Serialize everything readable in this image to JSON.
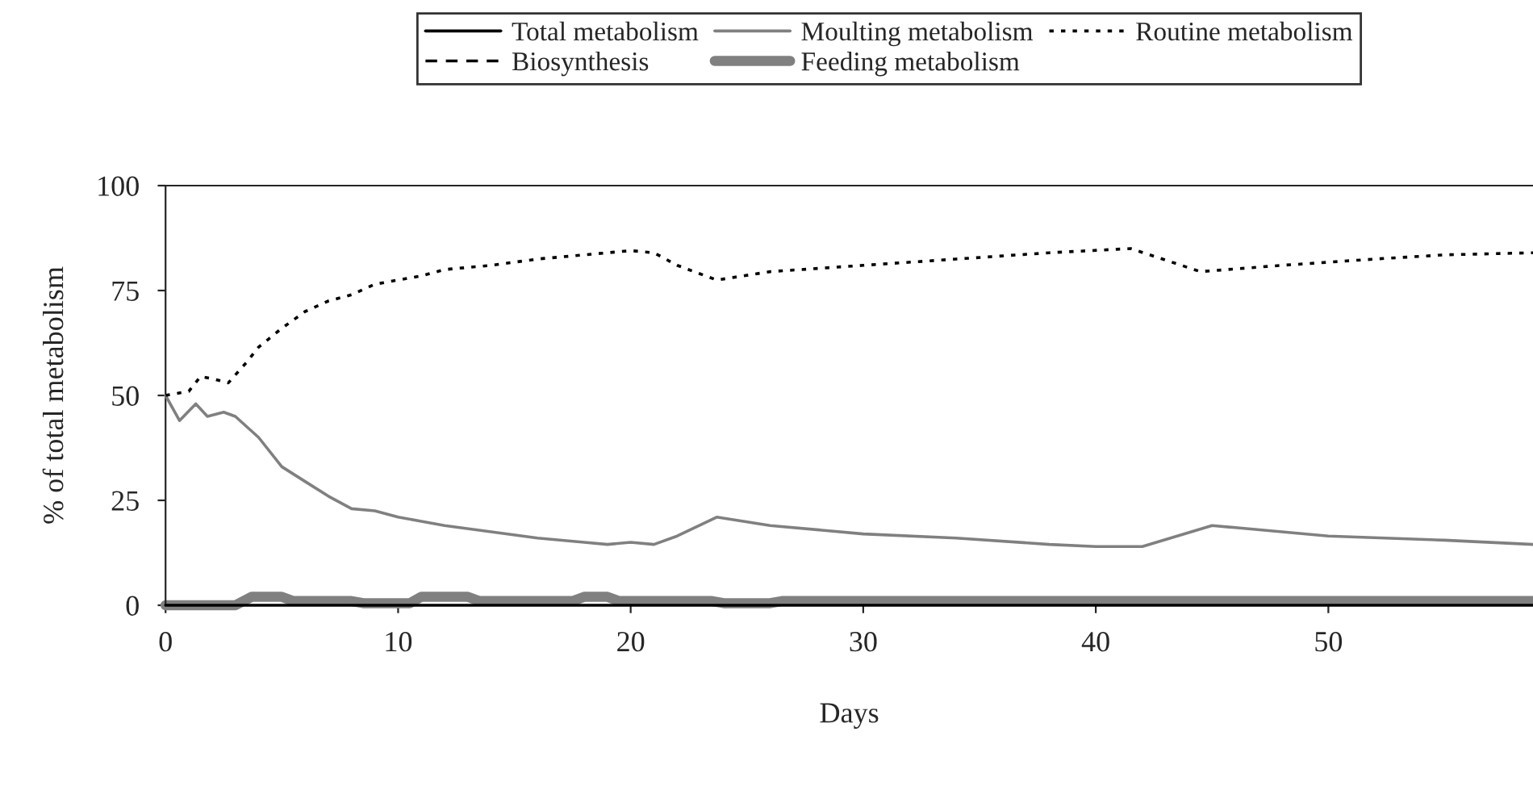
{
  "chart_data": {
    "type": "line",
    "xlabel": "Days",
    "ylabel": "% of total metabolism",
    "xlim": [
      0,
      58.8
    ],
    "ylim": [
      0,
      100
    ],
    "xticks": [
      0,
      10,
      20,
      30,
      40,
      50
    ],
    "yticks": [
      0,
      25,
      50,
      75,
      100
    ],
    "grid": false,
    "legend": "top",
    "marker": "none",
    "series": [
      {
        "name": "Total metabolism",
        "color": "#000000",
        "line_style": "solid",
        "x": [
          0,
          58.8
        ],
        "values": [
          0,
          0
        ]
      },
      {
        "name": "Moulting metabolism",
        "color": "#808080",
        "line_style": "solid",
        "x": [
          0,
          0.6,
          1.3,
          1.8,
          2.5,
          3,
          4,
          5,
          6,
          7,
          8,
          9,
          10,
          11,
          12,
          14,
          16,
          18,
          19,
          20,
          21,
          22,
          23.7,
          26,
          30,
          34,
          38,
          40,
          42,
          45,
          46,
          50,
          55,
          58.8
        ],
        "values": [
          50,
          44,
          48,
          45,
          46,
          45,
          40,
          33,
          29.5,
          26,
          23,
          22.5,
          21,
          20,
          19,
          17.5,
          16,
          15,
          14.5,
          15,
          14.5,
          16.5,
          21,
          19,
          17,
          16,
          14.5,
          14,
          14,
          19,
          18.5,
          16.5,
          15.5,
          14.5
        ]
      },
      {
        "name": "Routine metabolism",
        "color": "#000000",
        "line_style": "dotted",
        "x": [
          0,
          1,
          1.5,
          2,
          2.7,
          3.5,
          4,
          5,
          6,
          7,
          8,
          9,
          10,
          11,
          12,
          14,
          16,
          18,
          20,
          21,
          22,
          23.7,
          26,
          30,
          34,
          38,
          41.5,
          44.5,
          48,
          52,
          55,
          58.8
        ],
        "values": [
          50,
          51,
          54.5,
          54,
          53,
          58,
          61.5,
          66,
          70,
          72.5,
          74,
          76.5,
          77.5,
          78.5,
          80,
          81,
          82.5,
          83.5,
          84.5,
          84,
          81,
          77.5,
          79.5,
          81,
          82.5,
          84,
          85,
          79.5,
          81,
          82.5,
          83.5,
          84
        ]
      },
      {
        "name": "Biosynthesis",
        "color": "#000000",
        "line_style": "dashed"
      },
      {
        "name": "Feeding metabolism",
        "color": "#808080",
        "line_style": "solid",
        "x": [
          0,
          3,
          3.7,
          5,
          5.5,
          8,
          8.5,
          10.5,
          11,
          13,
          13.5,
          17.5,
          18,
          19,
          19.5,
          23.5,
          24,
          26,
          26.5,
          58.8
        ],
        "values": [
          0,
          0,
          2,
          2,
          1,
          1,
          0.5,
          0.5,
          2,
          2,
          1,
          1,
          2,
          2,
          1,
          1,
          0.5,
          0.5,
          1,
          1
        ]
      }
    ]
  }
}
